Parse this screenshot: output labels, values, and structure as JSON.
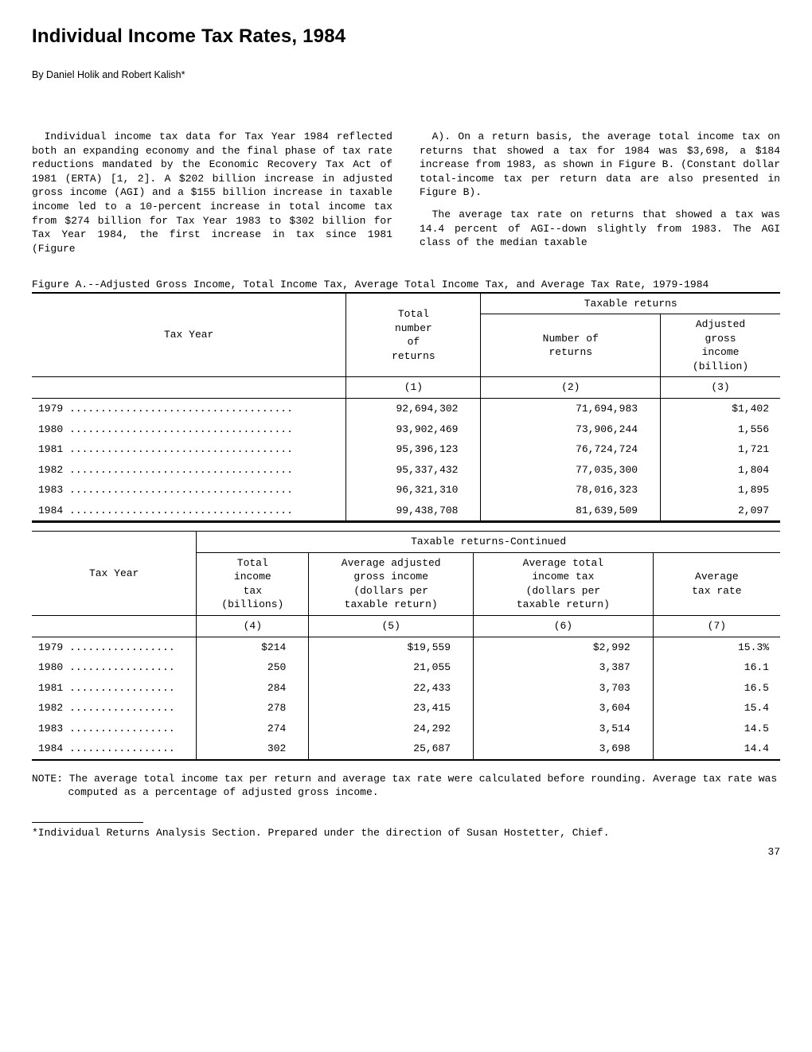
{
  "title": "Individual Income Tax Rates, 1984",
  "byline": "By Daniel Holik and Robert Kalish*",
  "body_paragraphs": [
    "Individual income tax data for Tax Year 1984 reflected both an expanding economy and the final phase of tax rate reductions mandated by the Economic Recovery Tax Act of 1981 (ERTA) [1, 2]. A $202 billion increase in adjusted gross income (AGI) and a $155 billion increase in taxable income led to a 10-percent increase in total income tax from $274 billion for Tax Year 1983 to $302 billion for Tax Year 1984, the first increase in tax since 1981 (Figure",
    "A). On a return basis, the average total income tax on returns that showed a tax for 1984 was $3,698, a $184 increase from 1983, as shown in Figure B. (Constant dollar total-income tax per return data are also presented in Figure B).",
    "The average tax rate on returns that showed a tax was 14.4 percent of AGI--down slightly from 1983. The AGI class of the median taxable"
  ],
  "figureA": {
    "caption": "Figure A.--Adjusted Gross Income, Total Income Tax, Average Total Income Tax, and Average Tax Rate, 1979-1984",
    "header": {
      "tax_year": "Tax Year",
      "total_returns": "Total\nnumber\nof\nreturns",
      "taxable_span": "Taxable returns",
      "num_returns": "Number of\nreturns",
      "agi": "Adjusted\ngross\nincome\n(billion)"
    },
    "colnums": [
      "(1)",
      "(2)",
      "(3)"
    ],
    "rows": [
      {
        "year": "1979",
        "dots": " ....................................",
        "c1": "92,694,302",
        "c2": "71,694,983",
        "c3": "$1,402"
      },
      {
        "year": "1980",
        "dots": " ....................................",
        "c1": "93,902,469",
        "c2": "73,906,244",
        "c3": "1,556"
      },
      {
        "year": "1981",
        "dots": " ....................................",
        "c1": "95,396,123",
        "c2": "76,724,724",
        "c3": "1,721"
      },
      {
        "year": "1982",
        "dots": " ....................................",
        "c1": "95,337,432",
        "c2": "77,035,300",
        "c3": "1,804"
      },
      {
        "year": "1983",
        "dots": " ....................................",
        "c1": "96,321,310",
        "c2": "78,016,323",
        "c3": "1,895"
      },
      {
        "year": "1984",
        "dots": " ....................................",
        "c1": "99,438,708",
        "c2": "81,639,509",
        "c3": "2,097"
      }
    ]
  },
  "figureA_cont": {
    "header": {
      "tax_year": "Tax Year",
      "taxable_span": "Taxable returns-Continued",
      "c4": "Total\nincome\ntax\n(billions)",
      "c5": "Average adjusted\ngross income\n(dollars per\ntaxable return)",
      "c6": "Average total\nincome tax\n(dollars per\ntaxable return)",
      "c7": "Average\ntax rate"
    },
    "colnums": [
      "(4)",
      "(5)",
      "(6)",
      "(7)"
    ],
    "rows": [
      {
        "year": "1979",
        "dots": " .................",
        "c4": "$214",
        "c5": "$19,559",
        "c6": "$2,992",
        "c7": "15.3%"
      },
      {
        "year": "1980",
        "dots": " .................",
        "c4": "250",
        "c5": "21,055",
        "c6": "3,387",
        "c7": "16.1"
      },
      {
        "year": "1981",
        "dots": " .................",
        "c4": "284",
        "c5": "22,433",
        "c6": "3,703",
        "c7": "16.5"
      },
      {
        "year": "1982",
        "dots": " .................",
        "c4": "278",
        "c5": "23,415",
        "c6": "3,604",
        "c7": "15.4"
      },
      {
        "year": "1983",
        "dots": " .................",
        "c4": "274",
        "c5": "24,292",
        "c6": "3,514",
        "c7": "14.5"
      },
      {
        "year": "1984",
        "dots": " .................",
        "c4": "302",
        "c5": "25,687",
        "c6": "3,698",
        "c7": "14.4"
      }
    ]
  },
  "note": "NOTE: The average total income tax per return and average tax rate were calculated before rounding. Average tax rate was computed as a percentage of adjusted gross income.",
  "footnote": "*Individual Returns Analysis Section.  Prepared under the direction of Susan Hostetter, Chief.",
  "page_number": "37"
}
